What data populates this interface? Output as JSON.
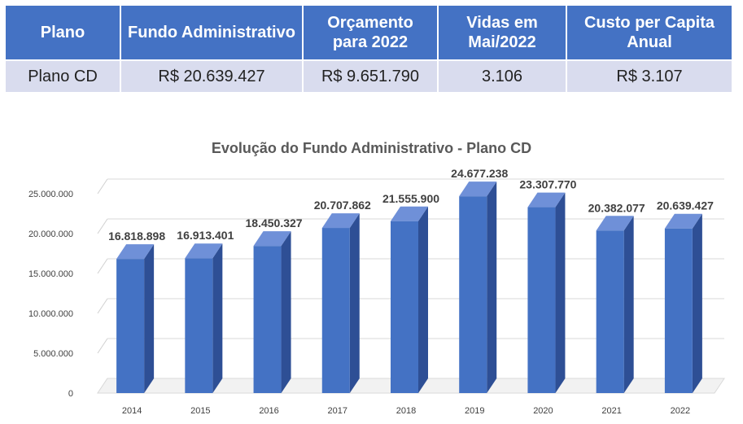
{
  "table": {
    "headers": [
      "Plano",
      "Fundo Administrativo",
      "Orçamento para 2022",
      "Vidas em Mai/2022",
      "Custo per Capita Anual"
    ],
    "row": [
      "Plano CD",
      "R$ 20.639.427",
      "R$ 9.651.790",
      "3.106",
      "R$ 3.107"
    ]
  },
  "chart_data": {
    "type": "bar",
    "title": "Evolução do Fundo Administrativo - Plano CD",
    "categories": [
      "2014",
      "2015",
      "2016",
      "2017",
      "2018",
      "2019",
      "2020",
      "2021",
      "2022"
    ],
    "values": [
      16818898,
      16913401,
      18450327,
      20707862,
      21555900,
      24677238,
      23307770,
      20382077,
      20639427
    ],
    "value_labels": [
      "16.818.898",
      "16.913.401",
      "18.450.327",
      "20.707.862",
      "21.555.900",
      "24.677.238",
      "23.307.770",
      "20.382.077",
      "20.639.427"
    ],
    "y_ticks": [
      0,
      5000000,
      10000000,
      15000000,
      20000000,
      25000000
    ],
    "y_tick_labels": [
      "0",
      "5.000.000",
      "10.000.000",
      "15.000.000",
      "20.000.000",
      "25.000.000"
    ],
    "ylim": [
      0,
      25000000
    ],
    "xlabel": "",
    "ylabel": "",
    "grid": true,
    "legend": "none",
    "bar_color": "#4472c4",
    "bar_side_color": "#2e4f95",
    "bar_top_color": "#6f90d8"
  }
}
